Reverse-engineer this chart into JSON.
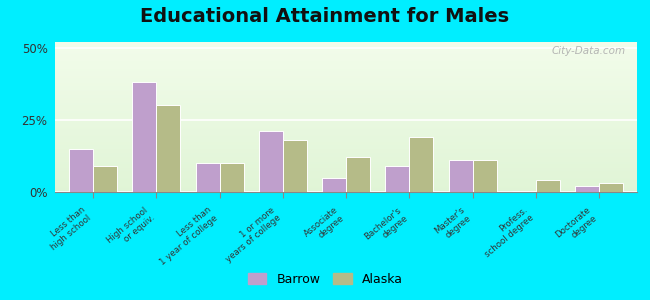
{
  "title": "Educational Attainment for Males",
  "categories": [
    "Less than\nhigh school",
    "High school\nor equiv.",
    "Less than\n1 year of college",
    "1 or more\nyears of college",
    "Associate\ndegree",
    "Bachelor's\ndegree",
    "Master's\ndegree",
    "Profess.\nschool degree",
    "Doctorate\ndegree"
  ],
  "barrow_values": [
    15.0,
    38.0,
    10.0,
    21.0,
    5.0,
    9.0,
    11.0,
    0.5,
    2.0
  ],
  "alaska_values": [
    9.0,
    30.0,
    10.0,
    18.0,
    12.0,
    19.0,
    11.0,
    4.0,
    3.0
  ],
  "barrow_color": "#bf9fcc",
  "alaska_color": "#b5bb88",
  "background_top": "#e8f5e0",
  "background_bottom": "#f0f5e8",
  "outer_background": "#00eeff",
  "yticks": [
    0,
    25,
    50
  ],
  "ylim": [
    0,
    52
  ],
  "title_fontsize": 14,
  "legend_labels": [
    "Barrow",
    "Alaska"
  ],
  "watermark": "City-Data.com"
}
